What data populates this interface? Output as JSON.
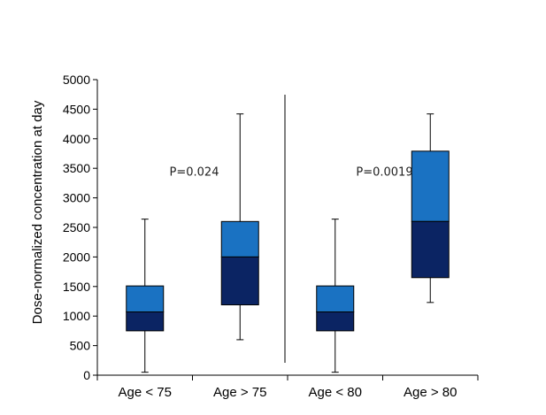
{
  "chart_data": {
    "type": "boxplot",
    "ylabel": "Dose-normalized concentration at day",
    "ylim": [
      0,
      5000
    ],
    "yticks": [
      0,
      500,
      1000,
      1500,
      2000,
      2500,
      3000,
      3500,
      4000,
      4500,
      5000
    ],
    "categories": [
      "Age < 75",
      "Age > 75",
      "Age < 80",
      "Age > 80"
    ],
    "boxes": [
      {
        "category": "Age < 75",
        "whisker_low": 50,
        "q1": 750,
        "median": 1070,
        "q3": 1510,
        "whisker_high": 2640
      },
      {
        "category": "Age > 75",
        "whisker_low": 600,
        "q1": 1190,
        "median": 2000,
        "q3": 2600,
        "whisker_high": 4420
      },
      {
        "category": "Age < 80",
        "whisker_low": 50,
        "q1": 750,
        "median": 1070,
        "q3": 1510,
        "whisker_high": 2640
      },
      {
        "category": "Age > 80",
        "whisker_low": 1230,
        "q1": 1650,
        "median": 2600,
        "q3": 3790,
        "whisker_high": 4420
      }
    ],
    "annotations": [
      {
        "text": "P=0.024",
        "x_between": [
          "Age < 75",
          "Age > 75"
        ],
        "y": 3450
      },
      {
        "text": "P=0.0019",
        "x_between": [
          "Age < 80",
          "Age > 80"
        ],
        "y": 3450
      }
    ],
    "colors": {
      "upper_box": "#1a72c2",
      "lower_box": "#0b2463",
      "axis": "#000000",
      "divider": "#555555"
    }
  }
}
